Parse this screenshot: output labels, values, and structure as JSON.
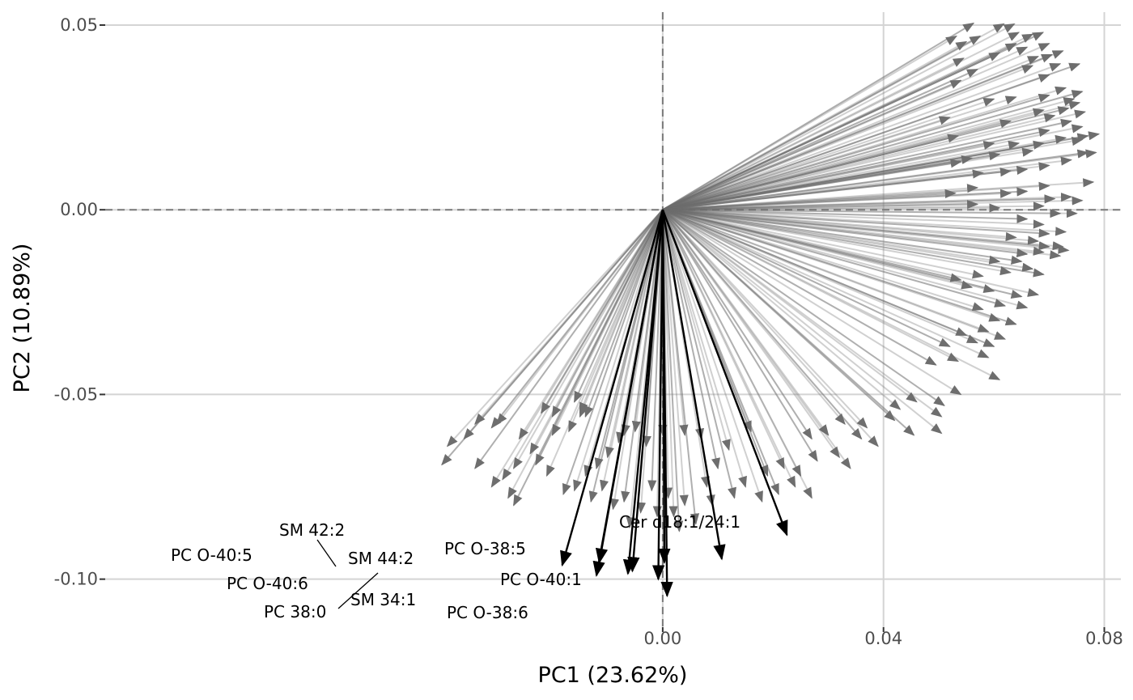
{
  "chart_data": {
    "type": "biplot",
    "xlabel": "PC1 (23.62%)",
    "ylabel": "PC2 (10.89%)",
    "xlim": [
      -0.101,
      0.083
    ],
    "ylim": [
      -0.113,
      0.0535
    ],
    "x_ticks": [
      0.0,
      0.04,
      0.08
    ],
    "x_tick_labels": [
      "0.00",
      "0.04",
      "0.08"
    ],
    "y_ticks": [
      0.05,
      0.0,
      -0.05,
      -0.1
    ],
    "y_tick_labels": [
      "0.05",
      "0.00",
      "-0.05",
      "-0.10"
    ],
    "grid": true,
    "reference_lines": {
      "x": 0,
      "y": 0,
      "style": "dashed"
    },
    "highlighted_vectors": [
      {
        "label": "PC O-40:5",
        "x": -0.0182,
        "y": -0.0962
      },
      {
        "label": "SM 42:2",
        "x": -0.0115,
        "y": -0.0955
      },
      {
        "label": "PC O-40:6",
        "x": -0.012,
        "y": -0.099
      },
      {
        "label": "PC 38:0",
        "x": -0.0063,
        "y": -0.0985
      },
      {
        "label": "SM 34:1",
        "x": -0.0055,
        "y": -0.0978
      },
      {
        "label": "SM 44:2",
        "x": -0.0008,
        "y": -0.1
      },
      {
        "label": "PC O-38:5",
        "x": 0.0003,
        "y": -0.0955
      },
      {
        "label": "PC O-38:6",
        "x": 0.0008,
        "y": -0.1045
      },
      {
        "label": "PC O-40:1",
        "x": 0.0107,
        "y": -0.0945
      },
      {
        "label": "Cer d18:1/24:1",
        "x": 0.0225,
        "y": -0.088
      }
    ],
    "background_vectors": [
      [
        0.0563,
        0.0505
      ],
      [
        0.0618,
        0.0503
      ],
      [
        0.0637,
        0.0503
      ],
      [
        0.0689,
        0.048
      ],
      [
        0.067,
        0.0475
      ],
      [
        0.0532,
        0.047
      ],
      [
        0.0575,
        0.047
      ],
      [
        0.0645,
        0.048
      ],
      [
        0.055,
        0.0455
      ],
      [
        0.064,
        0.045
      ],
      [
        0.07,
        0.045
      ],
      [
        0.066,
        0.044
      ],
      [
        0.0705,
        0.042
      ],
      [
        0.0725,
        0.043
      ],
      [
        0.068,
        0.0415
      ],
      [
        0.061,
        0.0425
      ],
      [
        0.0545,
        0.041
      ],
      [
        0.072,
        0.0395
      ],
      [
        0.0755,
        0.0395
      ],
      [
        0.07,
        0.0365
      ],
      [
        0.073,
        0.033
      ],
      [
        0.076,
        0.032
      ],
      [
        0.0745,
        0.03
      ],
      [
        0.0755,
        0.029
      ],
      [
        0.07,
        0.031
      ],
      [
        0.064,
        0.0305
      ],
      [
        0.06,
        0.03
      ],
      [
        0.054,
        0.035
      ],
      [
        0.057,
        0.038
      ],
      [
        0.067,
        0.039
      ],
      [
        0.0735,
        0.0275
      ],
      [
        0.0765,
        0.0265
      ],
      [
        0.076,
        0.0225
      ],
      [
        0.074,
        0.024
      ],
      [
        0.071,
        0.0255
      ],
      [
        0.069,
        0.027
      ],
      [
        0.07,
        0.0215
      ],
      [
        0.063,
        0.024
      ],
      [
        0.052,
        0.025
      ],
      [
        0.0535,
        0.02
      ],
      [
        0.06,
        0.018
      ],
      [
        0.0645,
        0.018
      ],
      [
        0.069,
        0.018
      ],
      [
        0.076,
        0.019
      ],
      [
        0.079,
        0.0205
      ],
      [
        0.077,
        0.02
      ],
      [
        0.073,
        0.0195
      ],
      [
        0.067,
        0.016
      ],
      [
        0.061,
        0.015
      ],
      [
        0.056,
        0.014
      ],
      [
        0.0785,
        0.0155
      ],
      [
        0.077,
        0.0155
      ],
      [
        0.074,
        0.0135
      ],
      [
        0.07,
        0.012
      ],
      [
        0.066,
        0.011
      ],
      [
        0.063,
        0.0105
      ],
      [
        0.058,
        0.01
      ],
      [
        0.054,
        0.013
      ],
      [
        0.078,
        0.0075
      ],
      [
        0.07,
        0.0065
      ],
      [
        0.066,
        0.005
      ],
      [
        0.063,
        0.0045
      ],
      [
        0.057,
        0.006
      ],
      [
        0.053,
        0.0045
      ],
      [
        0.074,
        0.0035
      ],
      [
        0.076,
        0.0025
      ],
      [
        0.071,
        0.003
      ],
      [
        0.069,
        0.001
      ],
      [
        0.061,
        0.0005
      ],
      [
        0.057,
        0.0015
      ],
      [
        0.072,
        -0.001
      ],
      [
        0.075,
        -0.001
      ],
      [
        0.066,
        -0.0025
      ],
      [
        0.069,
        -0.004
      ],
      [
        0.073,
        -0.006
      ],
      [
        0.07,
        -0.0065
      ],
      [
        0.068,
        -0.0085
      ],
      [
        0.064,
        -0.0075
      ],
      [
        0.07,
        -0.01
      ],
      [
        0.0725,
        -0.01
      ],
      [
        0.0735,
        -0.011
      ],
      [
        0.066,
        -0.012
      ],
      [
        0.069,
        -0.0115
      ],
      [
        0.072,
        -0.0125
      ],
      [
        0.065,
        -0.014
      ],
      [
        0.061,
        -0.014
      ],
      [
        0.067,
        -0.016
      ],
      [
        0.069,
        -0.0175
      ],
      [
        0.063,
        -0.017
      ],
      [
        0.058,
        -0.018
      ],
      [
        0.054,
        -0.019
      ],
      [
        0.056,
        -0.021
      ],
      [
        0.06,
        -0.022
      ],
      [
        0.065,
        -0.0235
      ],
      [
        0.068,
        -0.023
      ],
      [
        0.066,
        -0.0265
      ],
      [
        0.062,
        -0.026
      ],
      [
        0.058,
        -0.027
      ],
      [
        0.061,
        -0.03
      ],
      [
        0.064,
        -0.031
      ],
      [
        0.059,
        -0.033
      ],
      [
        0.055,
        -0.034
      ],
      [
        0.06,
        -0.037
      ],
      [
        0.062,
        -0.035
      ],
      [
        0.057,
        -0.036
      ],
      [
        0.052,
        -0.037
      ],
      [
        0.059,
        -0.04
      ],
      [
        0.0535,
        -0.041
      ],
      [
        0.0495,
        -0.042
      ],
      [
        0.061,
        -0.046
      ],
      [
        0.054,
        -0.05
      ],
      [
        0.051,
        -0.053
      ],
      [
        0.046,
        -0.052
      ],
      [
        0.043,
        -0.054
      ],
      [
        0.0455,
        -0.061
      ],
      [
        0.0505,
        -0.056
      ],
      [
        0.0505,
        -0.0605
      ],
      [
        0.042,
        -0.057
      ],
      [
        0.037,
        -0.059
      ],
      [
        0.033,
        -0.058
      ],
      [
        0.036,
        -0.062
      ],
      [
        0.039,
        -0.064
      ],
      [
        0.03,
        -0.061
      ],
      [
        0.027,
        -0.062
      ],
      [
        0.032,
        -0.067
      ],
      [
        0.034,
        -0.07
      ],
      [
        0.028,
        -0.068
      ],
      [
        0.025,
        -0.072
      ],
      [
        0.022,
        -0.07
      ],
      [
        0.019,
        -0.072
      ],
      [
        0.024,
        -0.075
      ],
      [
        0.027,
        -0.078
      ],
      [
        0.021,
        -0.077
      ],
      [
        0.018,
        -0.079
      ],
      [
        0.015,
        -0.075
      ],
      [
        0.013,
        -0.078
      ],
      [
        0.016,
        -0.06
      ],
      [
        0.012,
        -0.065
      ],
      [
        0.01,
        -0.07
      ],
      [
        0.008,
        -0.075
      ],
      [
        0.009,
        -0.08
      ],
      [
        0.006,
        -0.085
      ],
      [
        0.004,
        -0.08
      ],
      [
        0.002,
        -0.083
      ],
      [
        0.003,
        -0.087
      ],
      [
        0.001,
        -0.078
      ],
      [
        -0.001,
        -0.083
      ],
      [
        -0.002,
        -0.076
      ],
      [
        -0.004,
        -0.082
      ],
      [
        -0.006,
        -0.086
      ],
      [
        -0.007,
        -0.079
      ],
      [
        -0.009,
        -0.081
      ],
      [
        -0.011,
        -0.076
      ],
      [
        -0.013,
        -0.079
      ],
      [
        -0.008,
        -0.063
      ],
      [
        -0.01,
        -0.067
      ],
      [
        -0.012,
        -0.07
      ],
      [
        -0.014,
        -0.072
      ],
      [
        -0.016,
        -0.076
      ],
      [
        -0.018,
        -0.077
      ],
      [
        -0.005,
        -0.06
      ],
      [
        -0.007,
        -0.061
      ],
      [
        -0.003,
        -0.064
      ],
      [
        0.0,
        -0.061
      ],
      [
        0.004,
        -0.061
      ],
      [
        0.007,
        -0.062
      ],
      [
        -0.015,
        -0.055
      ],
      [
        -0.017,
        -0.06
      ],
      [
        -0.014,
        -0.056
      ],
      [
        -0.02,
        -0.061
      ],
      [
        -0.024,
        -0.066
      ],
      [
        -0.023,
        -0.069
      ],
      [
        -0.027,
        -0.07
      ],
      [
        -0.026,
        -0.062
      ],
      [
        -0.031,
        -0.059
      ],
      [
        -0.036,
        -0.062
      ],
      [
        -0.039,
        -0.064
      ],
      [
        -0.034,
        -0.07
      ],
      [
        -0.031,
        -0.075
      ],
      [
        -0.028,
        -0.078
      ],
      [
        -0.027,
        -0.08
      ],
      [
        -0.029,
        -0.073
      ],
      [
        -0.021,
        -0.072
      ],
      [
        -0.016,
        -0.052
      ],
      [
        -0.015,
        -0.056
      ],
      [
        -0.02,
        -0.056
      ],
      [
        -0.022,
        -0.055
      ],
      [
        -0.03,
        -0.058
      ],
      [
        -0.034,
        -0.058
      ],
      [
        -0.04,
        -0.069
      ]
    ]
  }
}
